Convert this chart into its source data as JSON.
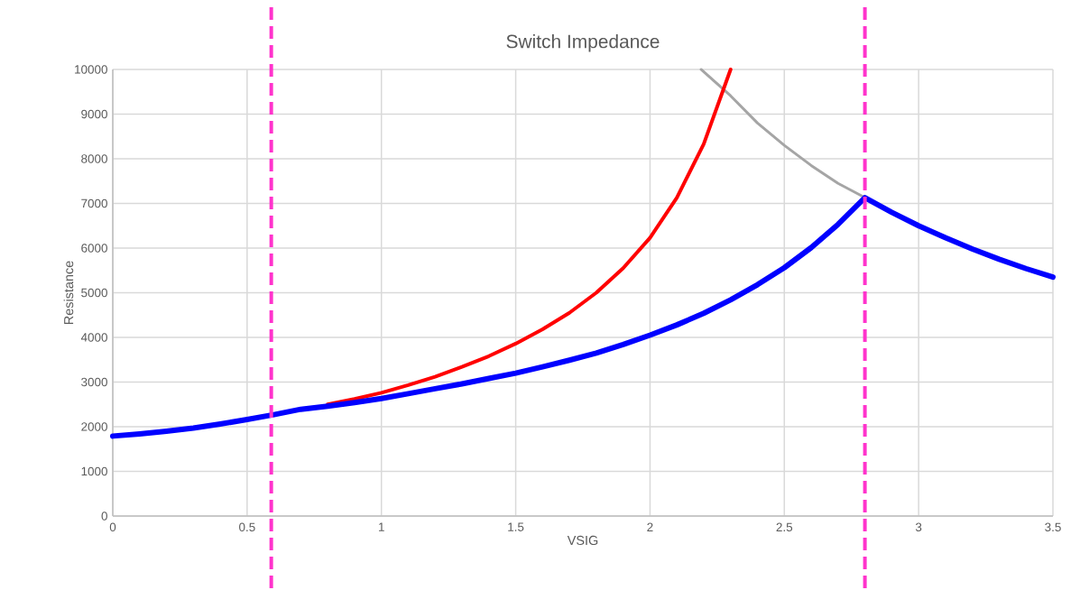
{
  "chart_data": {
    "type": "line",
    "title": "Switch Impedance",
    "xlabel": "VSIG",
    "ylabel": "Resistance",
    "xlim": [
      0,
      3.5
    ],
    "xticks": [
      0,
      0.5,
      1,
      1.5,
      2,
      2.5,
      3,
      3.5
    ],
    "ylim": [
      0,
      10000
    ],
    "yticks": [
      0,
      1000,
      2000,
      3000,
      4000,
      5000,
      6000,
      7000,
      8000,
      9000,
      10000
    ],
    "grid": true,
    "marker": "none",
    "line_style": "solid",
    "ref_lines": [
      {
        "axis": "x",
        "value": 0.59,
        "color": "#ff33cc",
        "line_style": "dashed"
      },
      {
        "axis": "x",
        "value": 2.8,
        "color": "#ff33cc",
        "line_style": "dashed"
      }
    ],
    "series": [
      {
        "color": "#a5a5a5",
        "x": [
          2.19,
          2.3,
          2.4,
          2.5,
          2.6,
          2.7,
          2.8
        ],
        "values": [
          10000,
          9410,
          8800,
          8300,
          7850,
          7450,
          7130
        ]
      },
      {
        "color": "#ff0000",
        "x": [
          0.8,
          0.9,
          1.0,
          1.1,
          1.2,
          1.3,
          1.4,
          1.5,
          1.6,
          1.7,
          1.8,
          1.9,
          2.0,
          2.1,
          2.2,
          2.3
        ],
        "values": [
          2500,
          2620,
          2760,
          2930,
          3120,
          3340,
          3580,
          3860,
          4180,
          4550,
          5000,
          5550,
          6230,
          7130,
          8330,
          10000
        ]
      },
      {
        "color": "#0000ff",
        "x": [
          0,
          0.1,
          0.2,
          0.3,
          0.4,
          0.5,
          0.6,
          0.7,
          0.8,
          0.9,
          1.0,
          1.1,
          1.2,
          1.3,
          1.4,
          1.5,
          1.6,
          1.7,
          1.8,
          1.9,
          2.0,
          2.1,
          2.2,
          2.3,
          2.4,
          2.5,
          2.6,
          2.7,
          2.8,
          2.9,
          3.0,
          3.1,
          3.2,
          3.3,
          3.4,
          3.5
        ],
        "values": [
          1790,
          1840,
          1900,
          1970,
          2060,
          2160,
          2270,
          2390,
          2460,
          2540,
          2630,
          2740,
          2850,
          2960,
          3080,
          3200,
          3340,
          3490,
          3650,
          3840,
          4050,
          4280,
          4540,
          4840,
          5180,
          5560,
          6010,
          6530,
          7130,
          6800,
          6500,
          6230,
          5980,
          5750,
          5540,
          5350
        ]
      }
    ]
  }
}
